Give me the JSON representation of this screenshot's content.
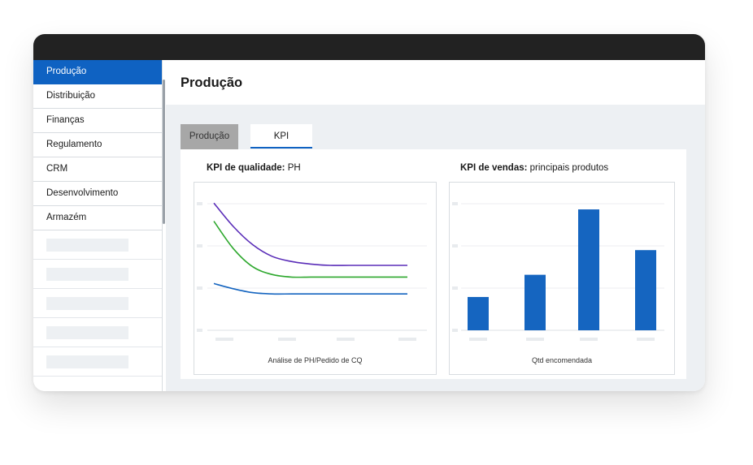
{
  "sidebar": {
    "items": [
      {
        "label": "Produção",
        "active": true
      },
      {
        "label": "Distribuição",
        "active": false
      },
      {
        "label": "Finanças",
        "active": false
      },
      {
        "label": "Regulamento",
        "active": false
      },
      {
        "label": "CRM",
        "active": false
      },
      {
        "label": "Desenvolvimento",
        "active": false
      },
      {
        "label": "Armazém",
        "active": false
      }
    ],
    "placeholder_rows": 5
  },
  "header": {
    "title": "Produção"
  },
  "tabs": [
    {
      "label": "Produção",
      "selected": false
    },
    {
      "label": "KPI",
      "selected": true
    }
  ],
  "colors": {
    "accent": "#0f62c2",
    "titlebar": "#222222",
    "line_purple": "#5a2db8",
    "line_green": "#2ea82e",
    "line_blue": "#1565c0",
    "bar_blue": "#1565c0"
  },
  "charts": {
    "quality": {
      "heading_bold": "KPI de qualidade:",
      "heading_rest": " PH",
      "xlabel": "Análise de PH/Pedido de CQ"
    },
    "sales": {
      "heading_bold": "KPI de vendas:",
      "heading_rest": " principais produtos",
      "xlabel": "Qtd encomendada"
    }
  },
  "chart_data": [
    {
      "type": "line",
      "x": [
        0,
        1,
        2,
        3,
        4,
        5,
        6,
        7,
        8,
        9,
        10
      ],
      "ylim": [
        0,
        100
      ],
      "series": [
        {
          "values": [
            98,
            80,
            66,
            57,
            53,
            51,
            50,
            50,
            50,
            50,
            50
          ]
        },
        {
          "values": [
            84,
            63,
            49,
            43,
            41,
            41,
            41,
            41,
            41,
            41,
            41
          ]
        },
        {
          "values": [
            36,
            32,
            29,
            28,
            28,
            28,
            28,
            28,
            28,
            28,
            28
          ]
        }
      ],
      "grid": true
    },
    {
      "type": "bar",
      "categories": [
        "",
        "",
        "",
        ""
      ],
      "values": [
        27,
        45,
        98,
        65
      ],
      "ylim": [
        0,
        100
      ],
      "grid": true
    }
  ]
}
